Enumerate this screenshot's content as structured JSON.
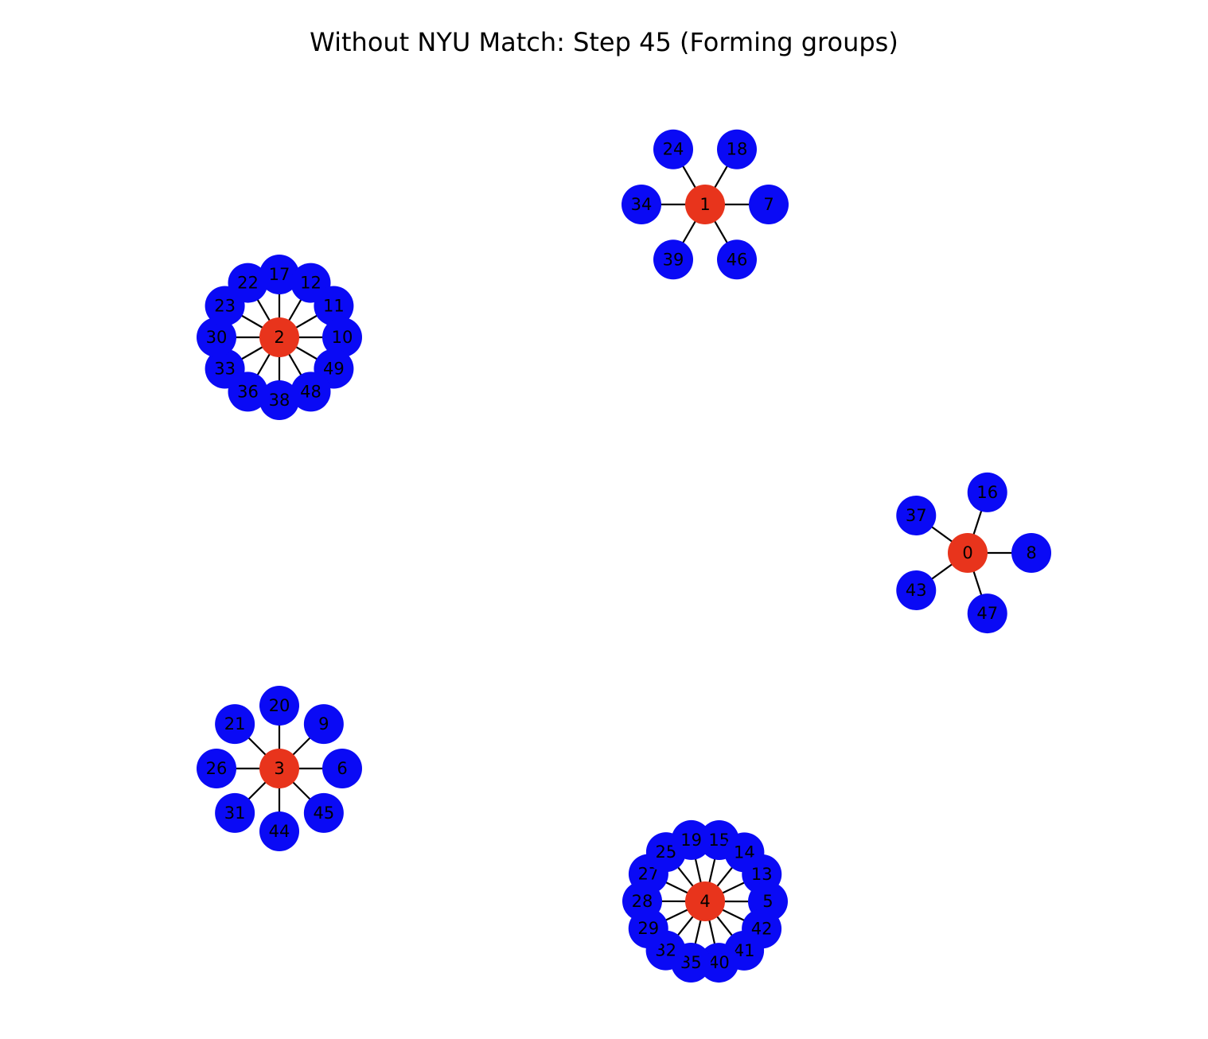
{
  "title": "Without NYU Match: Step 45 (Forming groups)",
  "colors": {
    "hub": "#e8341c",
    "member": "#0a0af5",
    "edge": "#000000"
  },
  "groups": [
    {
      "hub": "1",
      "members": [
        "24",
        "18",
        "7",
        "46",
        "39",
        "34"
      ]
    },
    {
      "hub": "2",
      "members": [
        "17",
        "12",
        "11",
        "10",
        "49",
        "48",
        "38",
        "36",
        "33",
        "30",
        "23",
        "22"
      ]
    },
    {
      "hub": "0",
      "members": [
        "16",
        "8",
        "47",
        "43",
        "37"
      ]
    },
    {
      "hub": "3",
      "members": [
        "20",
        "9",
        "6",
        "45",
        "44",
        "31",
        "26",
        "21"
      ]
    },
    {
      "hub": "4",
      "members": [
        "15",
        "14",
        "13",
        "5",
        "42",
        "41",
        "40",
        "35",
        "32",
        "29",
        "28",
        "27",
        "25",
        "19"
      ]
    }
  ]
}
